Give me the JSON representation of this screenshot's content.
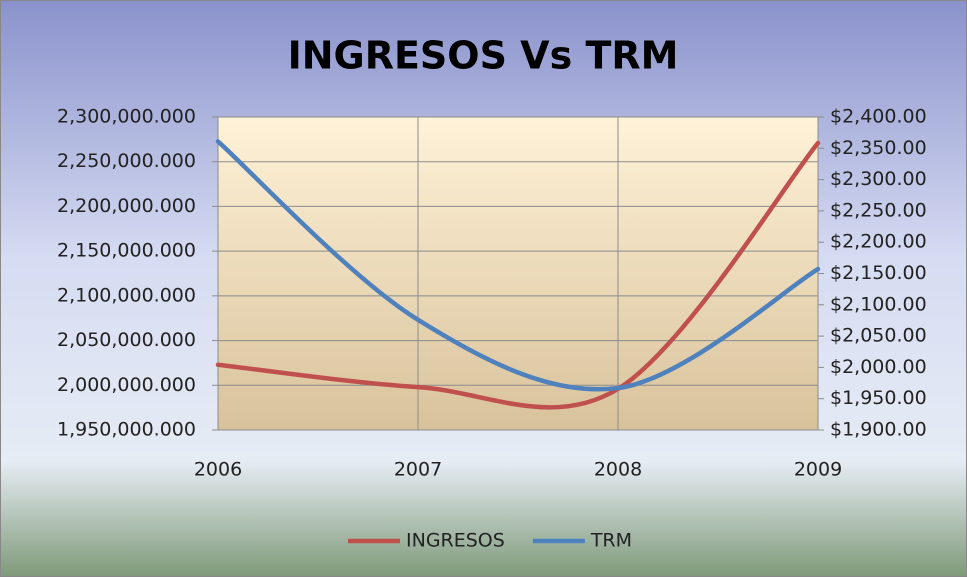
{
  "chart_data": {
    "type": "line",
    "title": "INGRESOS Vs TRM",
    "categories": [
      "2006",
      "2007",
      "2008",
      "2009"
    ],
    "series": [
      {
        "name": "INGRESOS",
        "color": "#c0504d",
        "values": [
          2023000,
          1998000,
          1996000,
          2271000
        ]
      },
      {
        "name": "TRM",
        "color": "#4f81bd",
        "axis": "y2",
        "values": [
          2361,
          2076,
          1967,
          2157
        ]
      }
    ],
    "ylim": [
      1950000,
      2300000
    ],
    "yticks": [
      {
        "value": 1950000,
        "label": "1,950,000.000"
      },
      {
        "value": 2000000,
        "label": "2,000,000.000"
      },
      {
        "value": 2050000,
        "label": "2,050,000.000"
      },
      {
        "value": 2100000,
        "label": "2,100,000.000"
      },
      {
        "value": 2150000,
        "label": "2,150,000.000"
      },
      {
        "value": 2200000,
        "label": "2,200,000.000"
      },
      {
        "value": 2250000,
        "label": "2,250,000.000"
      },
      {
        "value": 2300000,
        "label": "2,300,000.000"
      }
    ],
    "y2lim": [
      1900,
      2400
    ],
    "y2ticks": [
      {
        "value": 1900,
        "label": "$1,900.00"
      },
      {
        "value": 1950,
        "label": "$1,950.00"
      },
      {
        "value": 2000,
        "label": "$2,000.00"
      },
      {
        "value": 2050,
        "label": "$2,050.00"
      },
      {
        "value": 2100,
        "label": "$2,100.00"
      },
      {
        "value": 2150,
        "label": "$2,150.00"
      },
      {
        "value": 2200,
        "label": "$2,200.00"
      },
      {
        "value": 2250,
        "label": "$2,250.00"
      },
      {
        "value": 2300,
        "label": "$2,300.00"
      },
      {
        "value": 2350,
        "label": "$2,350.00"
      },
      {
        "value": 2400,
        "label": "$2,400.00"
      }
    ],
    "grid": true,
    "legend": "bottom"
  }
}
